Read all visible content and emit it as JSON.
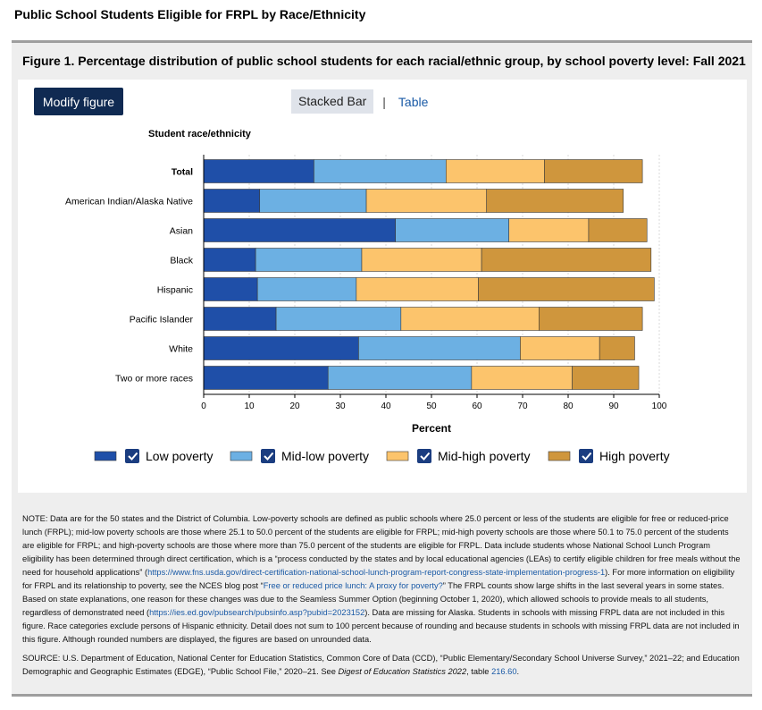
{
  "page_title": "Public School Students Eligible for FRPL by Race/Ethnicity",
  "figure_title": "Figure 1. Percentage distribution of public school students for each racial/ethnic group, by school poverty level: Fall 2021",
  "toolbar": {
    "modify_label": "Modify figure",
    "tab_stacked_label": "Stacked Bar",
    "separator": "|",
    "tab_table_label": "Table"
  },
  "colors": {
    "low": "#1f4fa8",
    "mid_low": "#6cb0e3",
    "mid_high": "#fcc46c",
    "high": "#cf963d",
    "checkbox": "#1b3d80"
  },
  "chart_data": {
    "type": "bar",
    "orientation": "horizontal",
    "stacked": true,
    "ylabel": "Student race/ethnicity",
    "xlabel": "Percent",
    "xlim": [
      0,
      100
    ],
    "xticks": [
      0,
      10,
      20,
      30,
      40,
      50,
      60,
      70,
      80,
      90,
      100
    ],
    "grid": true,
    "legend_position": "bottom",
    "categories": [
      "Total",
      "American Indian/Alaska Native",
      "Asian",
      "Black",
      "Hispanic",
      "Pacific Islander",
      "White",
      "Two or more races"
    ],
    "series": [
      {
        "name": "Low poverty",
        "color": "#1f4fa8",
        "values": [
          24.2,
          12.3,
          42.1,
          11.4,
          11.8,
          15.9,
          34.0,
          27.3
        ]
      },
      {
        "name": "Mid-low poverty",
        "color": "#6cb0e3",
        "values": [
          29.0,
          23.4,
          24.9,
          23.3,
          21.7,
          27.4,
          35.5,
          31.5
        ]
      },
      {
        "name": "Mid-high poverty",
        "color": "#fcc46c",
        "values": [
          21.6,
          26.4,
          17.5,
          26.3,
          26.8,
          30.3,
          17.4,
          22.1
        ]
      },
      {
        "name": "High poverty",
        "color": "#cf963d",
        "values": [
          21.5,
          30.0,
          12.8,
          37.2,
          38.6,
          22.7,
          7.7,
          14.6
        ]
      }
    ]
  },
  "notes": {
    "note_1": "NOTE: Data are for the 50 states and the District of Columbia. Low-poverty schools are defined as public schools where 25.0 percent or less of the students are eligible for free or reduced-price lunch (FRPL); mid-low poverty schools are those where 25.1 to 50.0 percent of the students are eligible for FRPL; mid-high poverty schools are those where 50.1 to 75.0 percent of the students are eligible for FRPL; and high-poverty schools are those where more than 75.0 percent of the students are eligible for FRPL. Data include students whose National School Lunch Program eligibility has been determined through direct certification, which is a “process conducted by the states and by local educational agencies (LEAs) to certify eligible children for free meals without the need for household applications” (",
    "link_1": "https://www.fns.usda.gov/direct-certification-national-school-lunch-program-report-congress-state-implementation-progress-1",
    "note_2": "). For more information on eligibility for FRPL and its relationship to poverty, see the NCES blog post “",
    "link_2": "Free or reduced price lunch: A proxy for poverty?",
    "note_3": "” The FRPL counts show large shifts in the last several years in some states. Based on state explanations, one reason for these changes was due to the Seamless Summer Option (beginning October 1, 2020), which allowed schools to provide meals to all students, regardless of demonstrated need (",
    "link_3": "https://ies.ed.gov/pubsearch/pubsinfo.asp?pubid=2023152",
    "note_4": "). Data are missing for Alaska. Students in schools with missing FRPL data are not included in this figure. Race categories exclude persons of Hispanic ethnicity. Detail does not sum to 100 percent because of rounding and because students in schools with missing FRPL data are not included in this figure. Although rounded numbers are displayed, the figures are based on unrounded data.",
    "source_1": "SOURCE: U.S. Department of Education, National Center for Education Statistics, Common Core of Data (CCD), “Public Elementary/Secondary School Universe Survey,” 2021–22; and Education Demographic and Geographic Estimates (EDGE), “Public School File,” 2020–21. See ",
    "source_digest": "Digest of Education Statistics 2022",
    "source_2": ", table ",
    "source_link": "216.60",
    "source_3": "."
  }
}
